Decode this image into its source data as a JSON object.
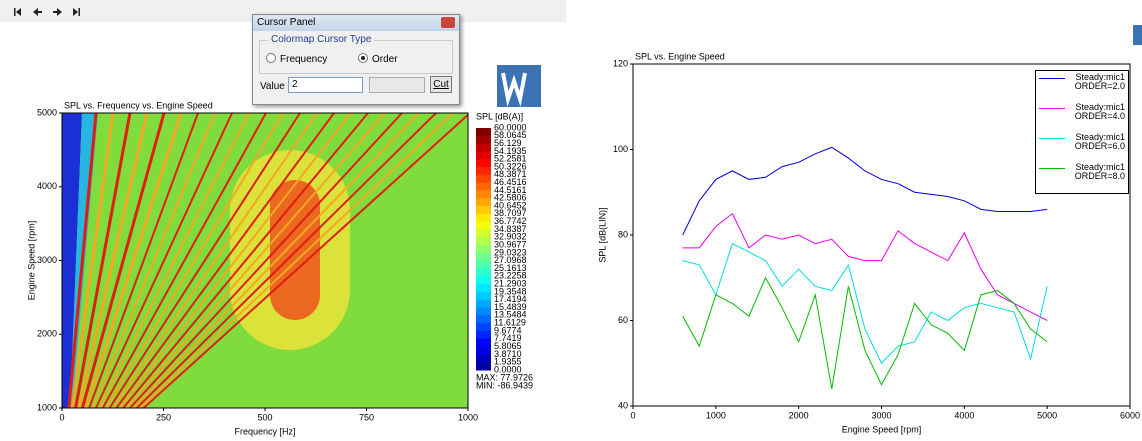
{
  "cursor_panel": {
    "title": "Cursor Panel",
    "group": "Colormap Cursor Type",
    "options": [
      "Frequency",
      "Order"
    ],
    "selected_index": 1,
    "value_label": "Value",
    "value": "2",
    "button": "Cut"
  },
  "chart_data": [
    {
      "type": "heatmap",
      "title": "SPL vs. Frequency vs. Engine Speed",
      "x_label": "Frequency [Hz]",
      "y_label": "Engine Speed [rpm]",
      "xlim": [
        0,
        1000
      ],
      "xticks": [
        0,
        250,
        500,
        750,
        1000
      ],
      "ylim": [
        1000,
        5000
      ],
      "yticks": [
        1000,
        2000,
        3000,
        4000,
        5000
      ],
      "colorbar_title": "SPL [dB(A)]",
      "colorbar_ticks": [
        {
          "value": 60,
          "label": "60.0000"
        },
        58.0645,
        56.129,
        54.1935,
        52.2581,
        50.3226,
        48.3871,
        46.4516,
        44.5161,
        42.5806,
        40.6452,
        38.7097,
        36.7742,
        34.8387,
        32.9032,
        30.9677,
        29.0323,
        27.0968,
        25.1613,
        23.2258,
        21.2903,
        19.3548,
        17.4194,
        15.4839,
        13.5484,
        11.6129,
        9.6774,
        7.7419,
        5.8065,
        {
          "value": 3.871,
          "label": "3.8710"
        },
        1.9355,
        {
          "value": 0,
          "label": "0.0000"
        }
      ],
      "max_label": "MAX: 77.9726",
      "min_label": "MIN: -86.9439"
    },
    {
      "type": "line",
      "title": "SPL vs. Engine Speed",
      "x_label": "Engine Speed  [rpm]",
      "y_label": "SPL  [dB(LIN)]",
      "xlim": [
        0,
        6000
      ],
      "xticks": [
        0,
        1000,
        2000,
        3000,
        4000,
        5000,
        6000
      ],
      "ylim": [
        40,
        120
      ],
      "yticks": [
        40,
        60,
        80,
        100,
        120
      ],
      "x": [
        600,
        800,
        1000,
        1200,
        1400,
        1600,
        1800,
        2000,
        2200,
        2400,
        2600,
        2800,
        3000,
        3200,
        3400,
        3600,
        3800,
        4000,
        4200,
        4400,
        4600,
        4800,
        5000
      ],
      "series": [
        {
          "name": "Steady:mic1 ORDER=2.0",
          "color": "#0000dd",
          "values": [
            80,
            88,
            93,
            95,
            93,
            93.5,
            96,
            97,
            99,
            100.5,
            98,
            95,
            93,
            92,
            90,
            89.5,
            89,
            88,
            86,
            85.5,
            85.5,
            85.5,
            86
          ]
        },
        {
          "name": "Steady:mic1 ORDER=4.0",
          "color": "#ee00ee",
          "values": [
            77,
            77,
            82,
            85,
            77,
            80,
            79,
            80,
            78,
            79,
            75,
            74,
            74,
            81,
            78,
            76,
            74,
            80.5,
            72,
            66,
            64,
            62,
            60
          ]
        },
        {
          "name": "Steady:mic1 ORDER=6.0",
          "color": "#00dddd",
          "values": [
            74,
            73,
            66,
            78,
            76,
            74,
            68,
            72,
            68,
            67,
            73,
            58,
            50,
            54,
            55,
            62,
            60,
            63,
            64,
            63,
            62,
            51,
            68
          ]
        },
        {
          "name": "Steady:mic1 ORDER=8.0",
          "color": "#00bb00",
          "values": [
            61,
            54,
            66,
            64,
            61,
            70,
            63,
            55,
            66,
            44,
            68,
            53,
            45,
            52,
            64,
            59,
            57,
            53,
            66,
            67,
            64,
            58,
            55
          ]
        }
      ]
    }
  ]
}
